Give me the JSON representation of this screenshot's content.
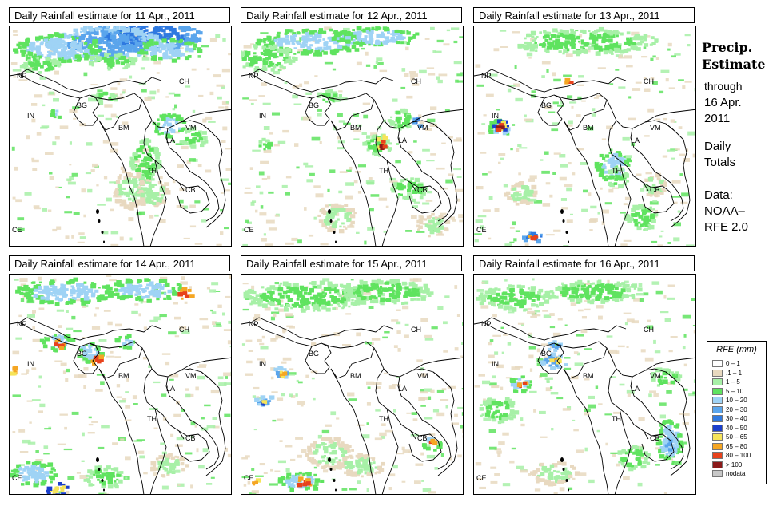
{
  "panels": [
    {
      "title": "Daily Rainfall estimate for  11 Apr., 2011",
      "variant": 0
    },
    {
      "title": "Daily Rainfall estimate for  12 Apr., 2011",
      "variant": 1
    },
    {
      "title": "Daily Rainfall estimate for  13 Apr., 2011",
      "variant": 2
    },
    {
      "title": "Daily Rainfall estimate for  14 Apr., 2011",
      "variant": 3
    },
    {
      "title": "Daily Rainfall estimate for  15 Apr., 2011",
      "variant": 4
    },
    {
      "title": "Daily Rainfall estimate for  16 Apr., 2011",
      "variant": 5
    }
  ],
  "country_labels": {
    "np": "NP",
    "in": "IN",
    "bg": "BG",
    "ch": "CH",
    "bm": "BM",
    "vm": "VM",
    "la": "LA",
    "th": "TH",
    "cb": "CB",
    "ce": "CE"
  },
  "side": {
    "title_line1": "Precip.",
    "title_line2": "Estimate",
    "through": "through",
    "date_line1": "16 Apr.",
    "date_line2": "2011",
    "daily_line1": "Daily",
    "daily_line2": "Totals",
    "data_line1": "Data:",
    "data_line2": "NOAA–",
    "data_line3": "RFE 2.0"
  },
  "legend": {
    "title": "RFE (mm)",
    "items": [
      {
        "label": "0 – 1",
        "color": "#ffffff"
      },
      {
        "label": ".1 – 1",
        "color": "#e8d9c0"
      },
      {
        "label": "1 – 5",
        "color": "#a7f0a7"
      },
      {
        "label": "5 – 10",
        "color": "#5fe35f"
      },
      {
        "label": "10 – 20",
        "color": "#9fd3f5"
      },
      {
        "label": "20 – 30",
        "color": "#5aa5ec"
      },
      {
        "label": "30 – 40",
        "color": "#2f79e0"
      },
      {
        "label": "40 – 50",
        "color": "#1b3fcc"
      },
      {
        "label": "50 – 65",
        "color": "#f6e45a"
      },
      {
        "label": "65 – 80",
        "color": "#f5a623"
      },
      {
        "label": "80 – 100",
        "color": "#e8421c"
      },
      {
        "label": "> 100",
        "color": "#8b1a1a"
      },
      {
        "label": "nodata",
        "color": "#c8c8c8"
      }
    ]
  }
}
